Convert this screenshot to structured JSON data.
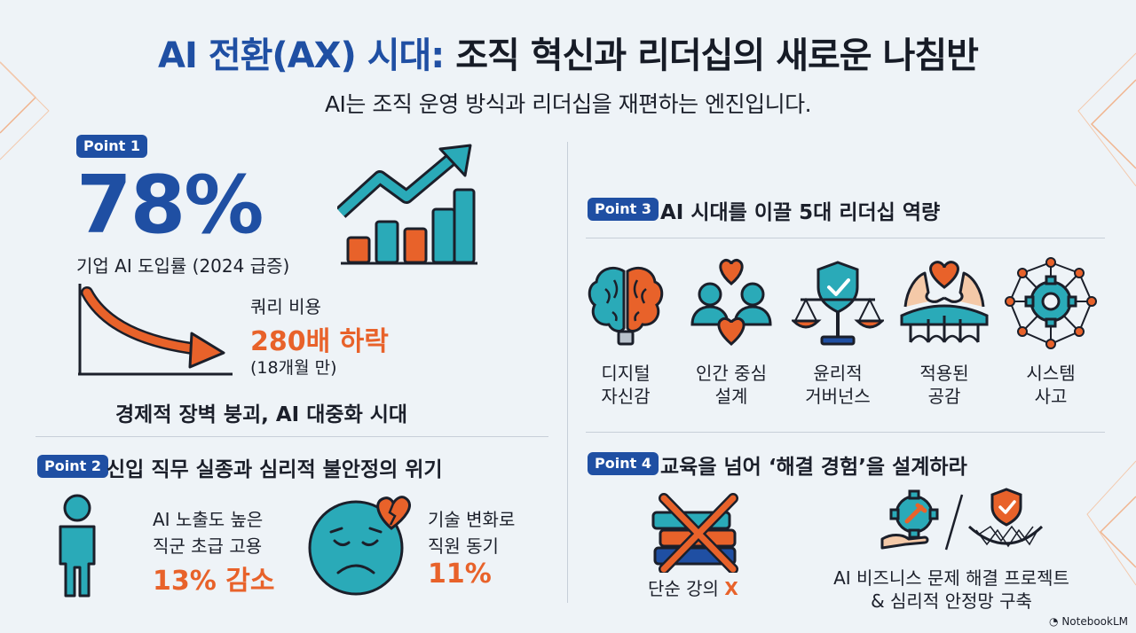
{
  "header": {
    "title_highlight": "AI 전환(AX) 시대:",
    "title_rest": " 조직 혁신과 리더십의 새로운 나침반",
    "subtitle": "AI는 조직 운영 방식과 리더십을 재편하는 엔진입니다."
  },
  "point1": {
    "badge": "Point 1",
    "big_value": "78%",
    "adoption_label": "기업 AI 도입률 (2024 급증)",
    "query_label": "쿼리 비용",
    "query_value": "280배 하락",
    "query_period": "(18개월 만)",
    "conclusion": "경제적 장벽 붕괴, AI 대중화 시대"
  },
  "point2": {
    "badge": "Point 2",
    "heading": "신입 직무 실종과 심리적 불안정의 위기",
    "stat1_line1": "AI 노출도 높은",
    "stat1_line2": "직군 초급 고용",
    "stat1_value": "13% 감소",
    "stat2_line1": "기술 변화로",
    "stat2_line2": "직원 동기",
    "stat2_value": "11%"
  },
  "point3": {
    "badge": "Point 3",
    "heading": "AI 시대를 이끌 5대 리더십 역량",
    "items": [
      {
        "line1": "디지털",
        "line2": "자신감",
        "icon": "brain-icon"
      },
      {
        "line1": "인간 중심",
        "line2": "설계",
        "icon": "people-heart-icon"
      },
      {
        "line1": "윤리적",
        "line2": "거버넌스",
        "icon": "scale-shield-icon"
      },
      {
        "line1": "적용된",
        "line2": "공감",
        "icon": "hands-bridge-icon"
      },
      {
        "line1": "시스템",
        "line2": "사고",
        "icon": "network-gear-icon"
      }
    ]
  },
  "point4": {
    "badge": "Point 4",
    "heading": "교육을 넘어 ‘해결 경험’을 설계하라",
    "left_label": "단순 강의",
    "left_x": "X",
    "right_line1": "AI 비즈니스 문제 해결 프로젝트",
    "right_line2": "& 심리적 안정망 구축"
  },
  "footer": {
    "brand": "NotebookLM"
  },
  "colors": {
    "blue": "#1f4fa3",
    "orange": "#e8622a",
    "teal": "#2aaab8",
    "dark": "#161b26"
  }
}
